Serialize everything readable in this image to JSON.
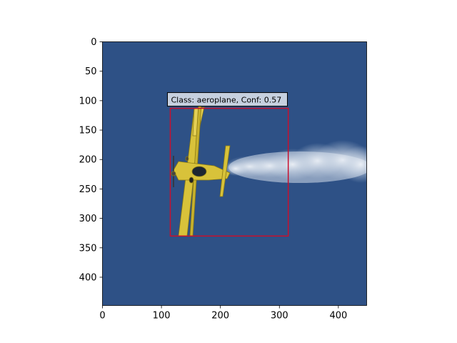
{
  "image": {
    "description_icon": "aeroplane-photo",
    "background_color": "#2e5186",
    "plane_color": "#d8c23a",
    "smoke_color": "#dfe6ef"
  },
  "axes": {
    "x_ticks": [
      "0",
      "100",
      "200",
      "300",
      "400"
    ],
    "x_tick_values": [
      0,
      100,
      200,
      300,
      400
    ],
    "y_ticks": [
      "0",
      "50",
      "100",
      "150",
      "200",
      "250",
      "300",
      "350",
      "400"
    ],
    "y_tick_values": [
      0,
      50,
      100,
      150,
      200,
      250,
      300,
      350,
      400
    ],
    "x_range": [
      0,
      448
    ],
    "y_range": [
      0,
      448
    ]
  },
  "detection": {
    "label": "Class: aeroplane, Conf: 0.57",
    "class": "aeroplane",
    "confidence": 0.57,
    "box": {
      "x_min": 115,
      "y_min": 113,
      "x_max": 315,
      "y_max": 330
    },
    "box_color": "#c8102e",
    "label_bg_color": "#c6d0df"
  }
}
